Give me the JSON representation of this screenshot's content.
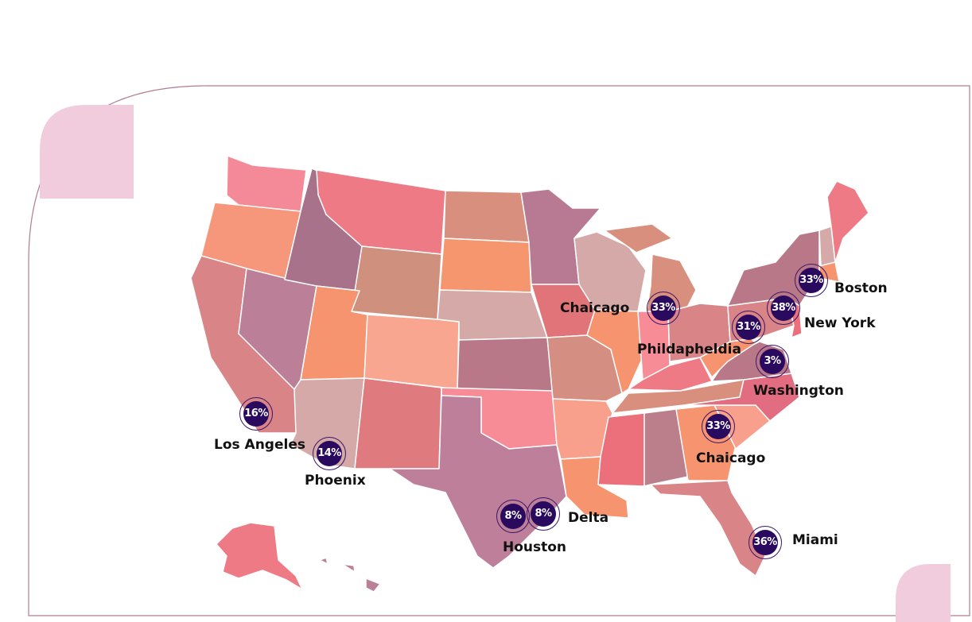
{
  "map": {
    "colors": {
      "marker_fill": "#2a0a5e",
      "marker_ring": "#3a1668",
      "frame_line": "#b07c93",
      "corner_accent": "#f1ccdc"
    },
    "markers": [
      {
        "id": "los-angeles",
        "value": "16%",
        "city": "Los Angeles"
      },
      {
        "id": "phoenix",
        "value": "14%",
        "city": "Phoenix"
      },
      {
        "id": "houston",
        "value": "8%",
        "city": "Houston"
      },
      {
        "id": "delta",
        "value": "8%",
        "city": "Delta"
      },
      {
        "id": "chicago",
        "value": "33%",
        "city": "Chaicago"
      },
      {
        "id": "philadelphia",
        "value": "31%",
        "city": "Phildapheldia"
      },
      {
        "id": "new-york",
        "value": "38%",
        "city": "New York"
      },
      {
        "id": "boston",
        "value": "33%",
        "city": "Boston"
      },
      {
        "id": "washington",
        "value": "3%",
        "city": "Washington"
      },
      {
        "id": "atlanta",
        "value": "33%",
        "city": "Chaicago"
      },
      {
        "id": "miami",
        "value": "36%",
        "city": "Miami"
      }
    ]
  }
}
